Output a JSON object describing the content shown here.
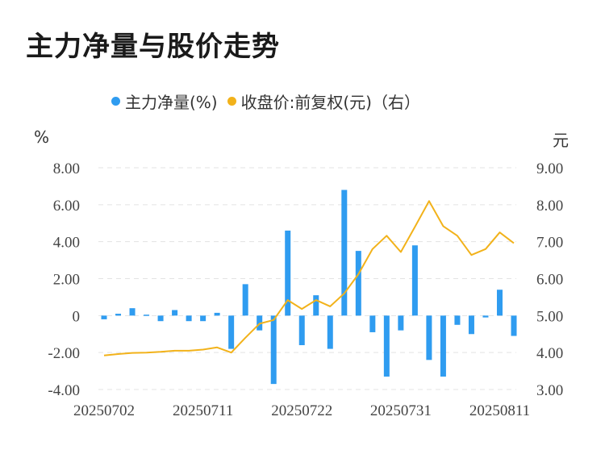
{
  "title": "主力净量与股价走势",
  "units": {
    "left": "%",
    "right": "元"
  },
  "colors": {
    "bar": "#2f9cf0",
    "line": "#f2b21a",
    "grid": "#e3e3e3",
    "text": "#444444"
  },
  "chart_data": {
    "type": "bar",
    "legend": [
      {
        "name": "主力净量(%)",
        "color": "#2f9cf0"
      },
      {
        "name": "收盘价:前复权(元)（右）",
        "color": "#f2b21a"
      }
    ],
    "y_left": {
      "ticks": [
        "8.00",
        "6.00",
        "4.00",
        "2.00",
        "0",
        "-2.00",
        "-4.00"
      ],
      "min": -4,
      "max": 8
    },
    "y_right": {
      "ticks": [
        "9.00",
        "8.00",
        "7.00",
        "6.00",
        "5.00",
        "4.00",
        "3.00"
      ],
      "min": 3,
      "max": 9
    },
    "x_tick_labels": [
      "20250702",
      "20250711",
      "20250722",
      "20250731",
      "20250811"
    ],
    "x_tick_index": [
      0,
      7,
      14,
      21,
      28
    ],
    "series": [
      {
        "name": "主力净量(%)",
        "axis": "left",
        "type": "bar",
        "values": [
          -0.2,
          0.1,
          0.4,
          0.05,
          -0.3,
          0.3,
          -0.3,
          -0.3,
          0.15,
          -1.8,
          1.7,
          -0.8,
          -3.7,
          4.6,
          -1.6,
          1.1,
          -1.8,
          6.8,
          3.5,
          -0.9,
          -3.3,
          -0.8,
          3.8,
          -2.4,
          -3.3,
          -0.5,
          -1.0,
          -0.1,
          1.4,
          -1.1
        ]
      },
      {
        "name": "收盘价:前复权(元)（右）",
        "axis": "right",
        "type": "line",
        "values": [
          3.92,
          3.96,
          3.99,
          4.0,
          4.02,
          4.05,
          4.05,
          4.08,
          4.14,
          4.0,
          4.4,
          4.78,
          4.88,
          5.42,
          5.18,
          5.42,
          5.25,
          5.6,
          6.12,
          6.8,
          7.16,
          6.72,
          7.4,
          8.1,
          7.42,
          7.16,
          6.64,
          6.8,
          7.25,
          6.96
        ]
      }
    ]
  }
}
